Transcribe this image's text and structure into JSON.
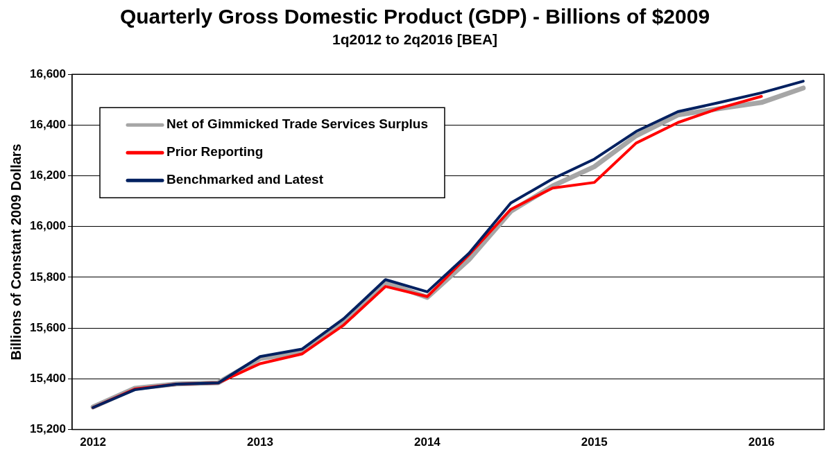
{
  "chart_data": {
    "type": "line",
    "title": "Quarterly Gross Domestic Product (GDP) - Billions of $2009",
    "subtitle": "1q2012 to 2q2016 [BEA]",
    "ylabel": "Billions of Constant 2009 Dollars",
    "categories": [
      "2012",
      null,
      null,
      null,
      "2013",
      null,
      null,
      null,
      "2014",
      null,
      null,
      null,
      "2015",
      null,
      null,
      null,
      "2016",
      null
    ],
    "series": [
      {
        "name": "Net of Gimmicked Trade Services Surplus",
        "color": "#a6a6a6",
        "values": [
          15289,
          15363,
          15380,
          15385,
          15480,
          15504,
          15623,
          15780,
          15721,
          15870,
          16060,
          16160,
          16236,
          16358,
          16440,
          16465,
          16489,
          16546
        ]
      },
      {
        "name": "Prior Reporting",
        "color": "#ff0000",
        "values": [
          15287,
          15360,
          15379,
          15384,
          15460,
          15498,
          15612,
          15764,
          15724,
          15889,
          16068,
          16152,
          16174,
          16329,
          16410,
          16467,
          16513,
          null
        ]
      },
      {
        "name": "Benchmarked and Latest",
        "color": "#002060",
        "values": [
          15287,
          15357,
          15379,
          15384,
          15488,
          15517,
          15637,
          15791,
          15743,
          15895,
          16093,
          16188,
          16266,
          16375,
          16453,
          16489,
          16527,
          16573
        ]
      }
    ],
    "ylim": [
      15200,
      16600
    ],
    "yticks": [
      {
        "value": 15200,
        "label": "15,200"
      },
      {
        "value": 15400,
        "label": "15,400"
      },
      {
        "value": 15600,
        "label": "15,600"
      },
      {
        "value": 15800,
        "label": "15,800"
      },
      {
        "value": 16000,
        "label": "16,000"
      },
      {
        "value": 16200,
        "label": "16,200"
      },
      {
        "value": 16400,
        "label": "16,400"
      },
      {
        "value": 16600,
        "label": "16,600"
      }
    ],
    "grid": "y",
    "legend": "top left",
    "marker": "none",
    "line_style": "solid"
  }
}
